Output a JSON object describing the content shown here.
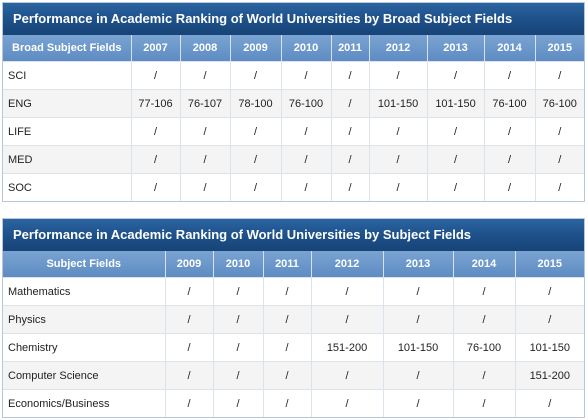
{
  "broad": {
    "title": "Performance in Academic Ranking of World Universities by Broad Subject Fields",
    "headers": [
      "Broad Subject Fields",
      "2007",
      "2008",
      "2009",
      "2010",
      "2011",
      "2012",
      "2013",
      "2014",
      "2015"
    ],
    "rows": [
      [
        "SCI",
        "/",
        "/",
        "/",
        "/",
        "/",
        "/",
        "/",
        "/",
        "/"
      ],
      [
        "ENG",
        "77-106",
        "76-107",
        "78-100",
        "76-100",
        "/",
        "101-150",
        "101-150",
        "76-100",
        "76-100"
      ],
      [
        "LIFE",
        "/",
        "/",
        "/",
        "/",
        "/",
        "/",
        "/",
        "/",
        "/"
      ],
      [
        "MED",
        "/",
        "/",
        "/",
        "/",
        "/",
        "/",
        "/",
        "/",
        "/"
      ],
      [
        "SOC",
        "/",
        "/",
        "/",
        "/",
        "/",
        "/",
        "/",
        "/",
        "/"
      ]
    ]
  },
  "subject": {
    "title": "Performance in Academic Ranking of World Universities by Subject Fields",
    "headers": [
      "Subject Fields",
      "2009",
      "2010",
      "2011",
      "2012",
      "2013",
      "2014",
      "2015"
    ],
    "rows": [
      [
        "Mathematics",
        "/",
        "/",
        "/",
        "/",
        "/",
        "/",
        "/"
      ],
      [
        "Physics",
        "/",
        "/",
        "/",
        "/",
        "/",
        "/",
        "/"
      ],
      [
        "Chemistry",
        "/",
        "/",
        "/",
        "151-200",
        "101-150",
        "76-100",
        "101-150"
      ],
      [
        "Computer Science",
        "/",
        "/",
        "/",
        "/",
        "/",
        "/",
        "151-200"
      ],
      [
        "Economics/Business",
        "/",
        "/",
        "/",
        "/",
        "/",
        "/",
        "/"
      ]
    ]
  }
}
